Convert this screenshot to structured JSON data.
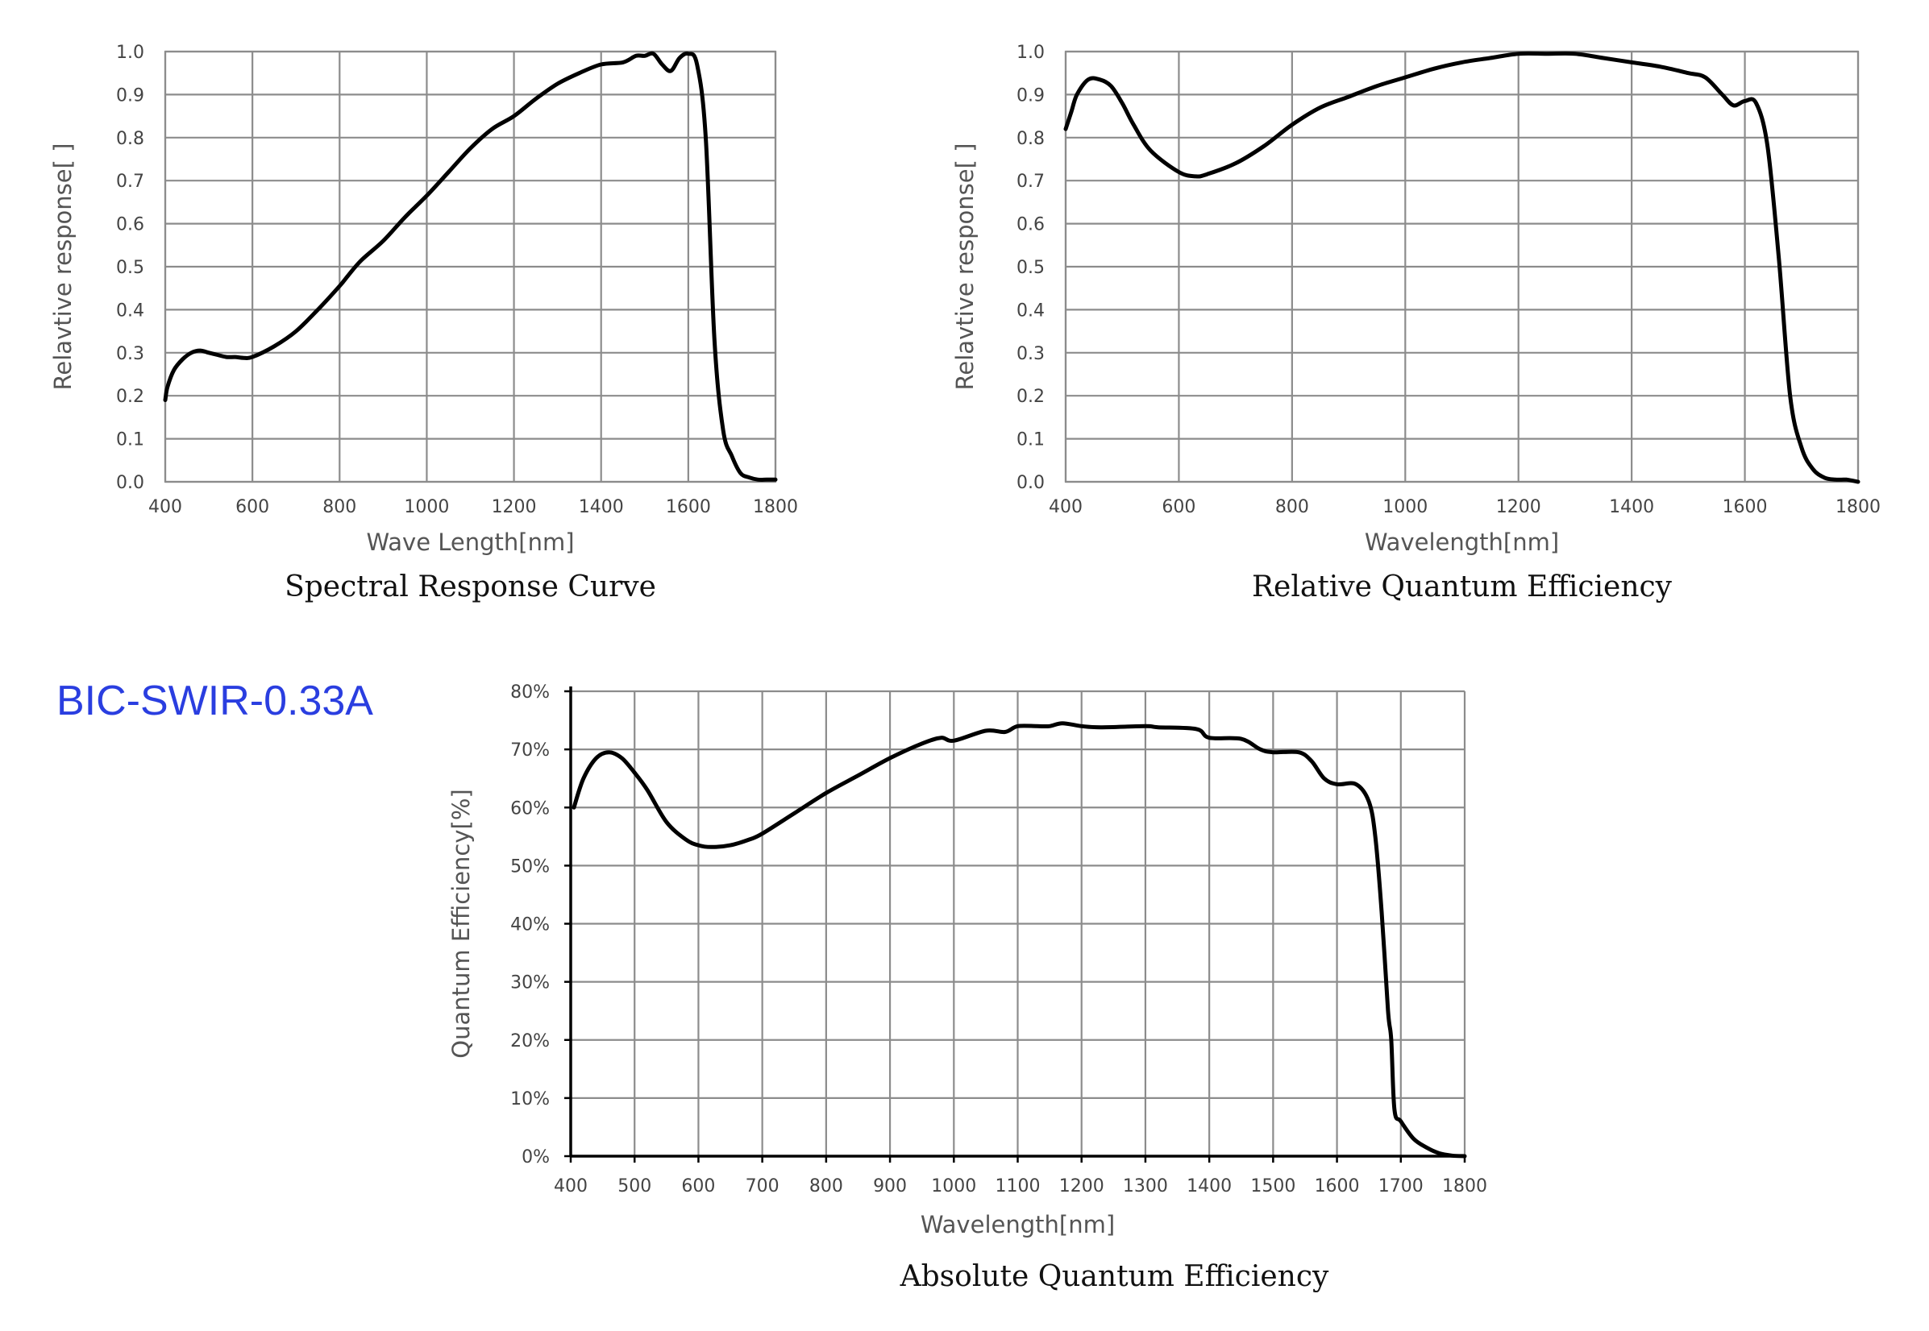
{
  "product_label": "BIC-SWIR-0.33A",
  "colors": {
    "product_label": "#2a3ee0",
    "curve": "#000000",
    "grid": "#8c8c8c"
  },
  "chart_data": [
    {
      "type": "line",
      "title": "Spectral Response Curve",
      "xlabel": "Wave Length[nm]",
      "ylabel": "Relavtive response[ ]",
      "xlim": [
        400,
        1800
      ],
      "ylim": [
        0,
        1.0
      ],
      "xticks": [
        400,
        600,
        800,
        1000,
        1200,
        1400,
        1600,
        1800
      ],
      "yticks": [
        "0.0",
        "0.1",
        "0.2",
        "0.3",
        "0.4",
        "0.5",
        "0.6",
        "0.7",
        "0.8",
        "0.9",
        "1.0"
      ],
      "grid": true,
      "series": [
        {
          "x": [
            400,
            405,
            420,
            440,
            460,
            480,
            500,
            520,
            540,
            560,
            580,
            600,
            650,
            700,
            750,
            800,
            820,
            850,
            900,
            950,
            1000,
            1050,
            1100,
            1150,
            1200,
            1250,
            1300,
            1350,
            1400,
            1450,
            1480,
            1500,
            1520,
            1540,
            1560,
            1580,
            1600,
            1620,
            1640,
            1660,
            1680,
            1700,
            1720,
            1740,
            1760,
            1780,
            1800
          ],
          "y": [
            0.19,
            0.22,
            0.26,
            0.285,
            0.3,
            0.305,
            0.3,
            0.295,
            0.29,
            0.29,
            0.288,
            0.29,
            0.315,
            0.35,
            0.4,
            0.455,
            0.48,
            0.515,
            0.56,
            0.615,
            0.665,
            0.72,
            0.775,
            0.82,
            0.85,
            0.89,
            0.925,
            0.95,
            0.97,
            0.975,
            0.99,
            0.99,
            0.995,
            0.97,
            0.955,
            0.985,
            0.995,
            0.97,
            0.8,
            0.33,
            0.12,
            0.06,
            0.02,
            0.01,
            0.005,
            0.005,
            0.005
          ]
        }
      ]
    },
    {
      "type": "line",
      "title": "Relative Quantum Efficiency",
      "xlabel": "Wavelength[nm]",
      "ylabel": "Relavtive response[ ]",
      "xlim": [
        400,
        1800
      ],
      "ylim": [
        0,
        1.0
      ],
      "xticks": [
        400,
        600,
        800,
        1000,
        1200,
        1400,
        1600,
        1800
      ],
      "yticks": [
        "0.0",
        "0.1",
        "0.2",
        "0.3",
        "0.4",
        "0.5",
        "0.6",
        "0.7",
        "0.8",
        "0.9",
        "1.0"
      ],
      "grid": true,
      "series": [
        {
          "x": [
            400,
            410,
            420,
            440,
            460,
            480,
            500,
            520,
            550,
            600,
            630,
            650,
            700,
            750,
            800,
            850,
            900,
            950,
            1000,
            1050,
            1100,
            1150,
            1200,
            1250,
            1300,
            1350,
            1400,
            1450,
            1500,
            1530,
            1560,
            1580,
            1600,
            1620,
            1640,
            1660,
            1680,
            1700,
            1720,
            1740,
            1760,
            1780,
            1800
          ],
          "y": [
            0.82,
            0.86,
            0.9,
            0.935,
            0.935,
            0.92,
            0.88,
            0.83,
            0.77,
            0.72,
            0.71,
            0.715,
            0.74,
            0.78,
            0.83,
            0.87,
            0.895,
            0.92,
            0.94,
            0.96,
            0.975,
            0.985,
            0.995,
            0.995,
            0.995,
            0.985,
            0.975,
            0.965,
            0.95,
            0.94,
            0.9,
            0.875,
            0.885,
            0.88,
            0.78,
            0.52,
            0.2,
            0.08,
            0.03,
            0.01,
            0.005,
            0.005,
            0.0
          ]
        }
      ]
    },
    {
      "type": "line",
      "title": "Absolute Quantum Efficiency",
      "xlabel": "Wavelength[nm]",
      "ylabel": "Quantum Efficiency[%]",
      "xlim": [
        400,
        1800
      ],
      "ylim": [
        0,
        80
      ],
      "xticks": [
        400,
        500,
        600,
        700,
        800,
        900,
        1000,
        1100,
        1200,
        1300,
        1400,
        1500,
        1600,
        1700,
        1800
      ],
      "yticks": [
        "0%",
        "10%",
        "20%",
        "30%",
        "40%",
        "50%",
        "60%",
        "70%",
        "80%"
      ],
      "grid": true,
      "series": [
        {
          "x": [
            405,
            420,
            440,
            460,
            480,
            500,
            520,
            550,
            580,
            600,
            620,
            650,
            680,
            700,
            750,
            800,
            850,
            900,
            950,
            980,
            1000,
            1050,
            1080,
            1100,
            1130,
            1150,
            1170,
            1200,
            1230,
            1300,
            1320,
            1380,
            1400,
            1450,
            1480,
            1500,
            1540,
            1560,
            1580,
            1600,
            1630,
            1650,
            1660,
            1670,
            1680,
            1685,
            1690,
            1700,
            1720,
            1740,
            1760,
            1780,
            1800
          ],
          "y": [
            60,
            65,
            68.5,
            69.5,
            68.5,
            66,
            63,
            57.5,
            54.5,
            53.5,
            53.2,
            53.5,
            54.5,
            55.5,
            59,
            62.5,
            65.5,
            68.5,
            71,
            72,
            71.5,
            73.2,
            73,
            74,
            74,
            74,
            74.5,
            74,
            73.8,
            74,
            73.8,
            73.5,
            72,
            71.8,
            70,
            69.5,
            69.5,
            68,
            65,
            64,
            64,
            61,
            55,
            42,
            25,
            20,
            8,
            6,
            3,
            1.5,
            0.5,
            0.1,
            0
          ]
        }
      ]
    }
  ]
}
